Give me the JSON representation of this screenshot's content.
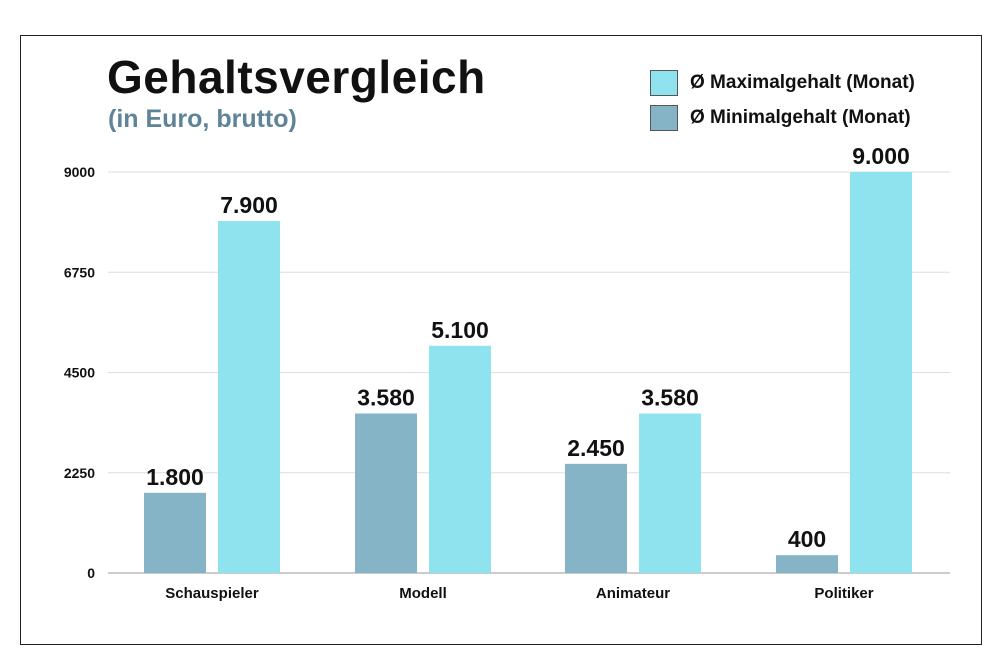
{
  "chart_data": {
    "type": "bar",
    "title": "Gehaltsvergleich",
    "subtitle": "(in Euro, brutto)",
    "categories": [
      "Schauspieler",
      "Modell",
      "Animateur",
      "Politiker"
    ],
    "series": [
      {
        "name": "Ø Minimalgehalt (Monat)",
        "color": "#86b4c7",
        "values": [
          1800,
          3580,
          2450,
          400
        ],
        "labels": [
          "1.800",
          "3.580",
          "2.450",
          "400"
        ]
      },
      {
        "name": "Ø Maximalgehalt (Monat)",
        "color": "#8fe3ef",
        "values": [
          7900,
          5100,
          3580,
          9000
        ],
        "labels": [
          "7.900",
          "5.100",
          "3.580",
          "9.000"
        ]
      }
    ],
    "yticks": [
      0,
      2250,
      4500,
      6750,
      9000
    ],
    "ylim": [
      0,
      9000
    ],
    "grid": true,
    "legend_position": "top-right"
  },
  "legend": [
    {
      "label": "Ø Maximalgehalt (Monat)",
      "color": "#8fe3ef"
    },
    {
      "label": "Ø Minimalgehalt (Monat)",
      "color": "#86b4c7"
    }
  ]
}
